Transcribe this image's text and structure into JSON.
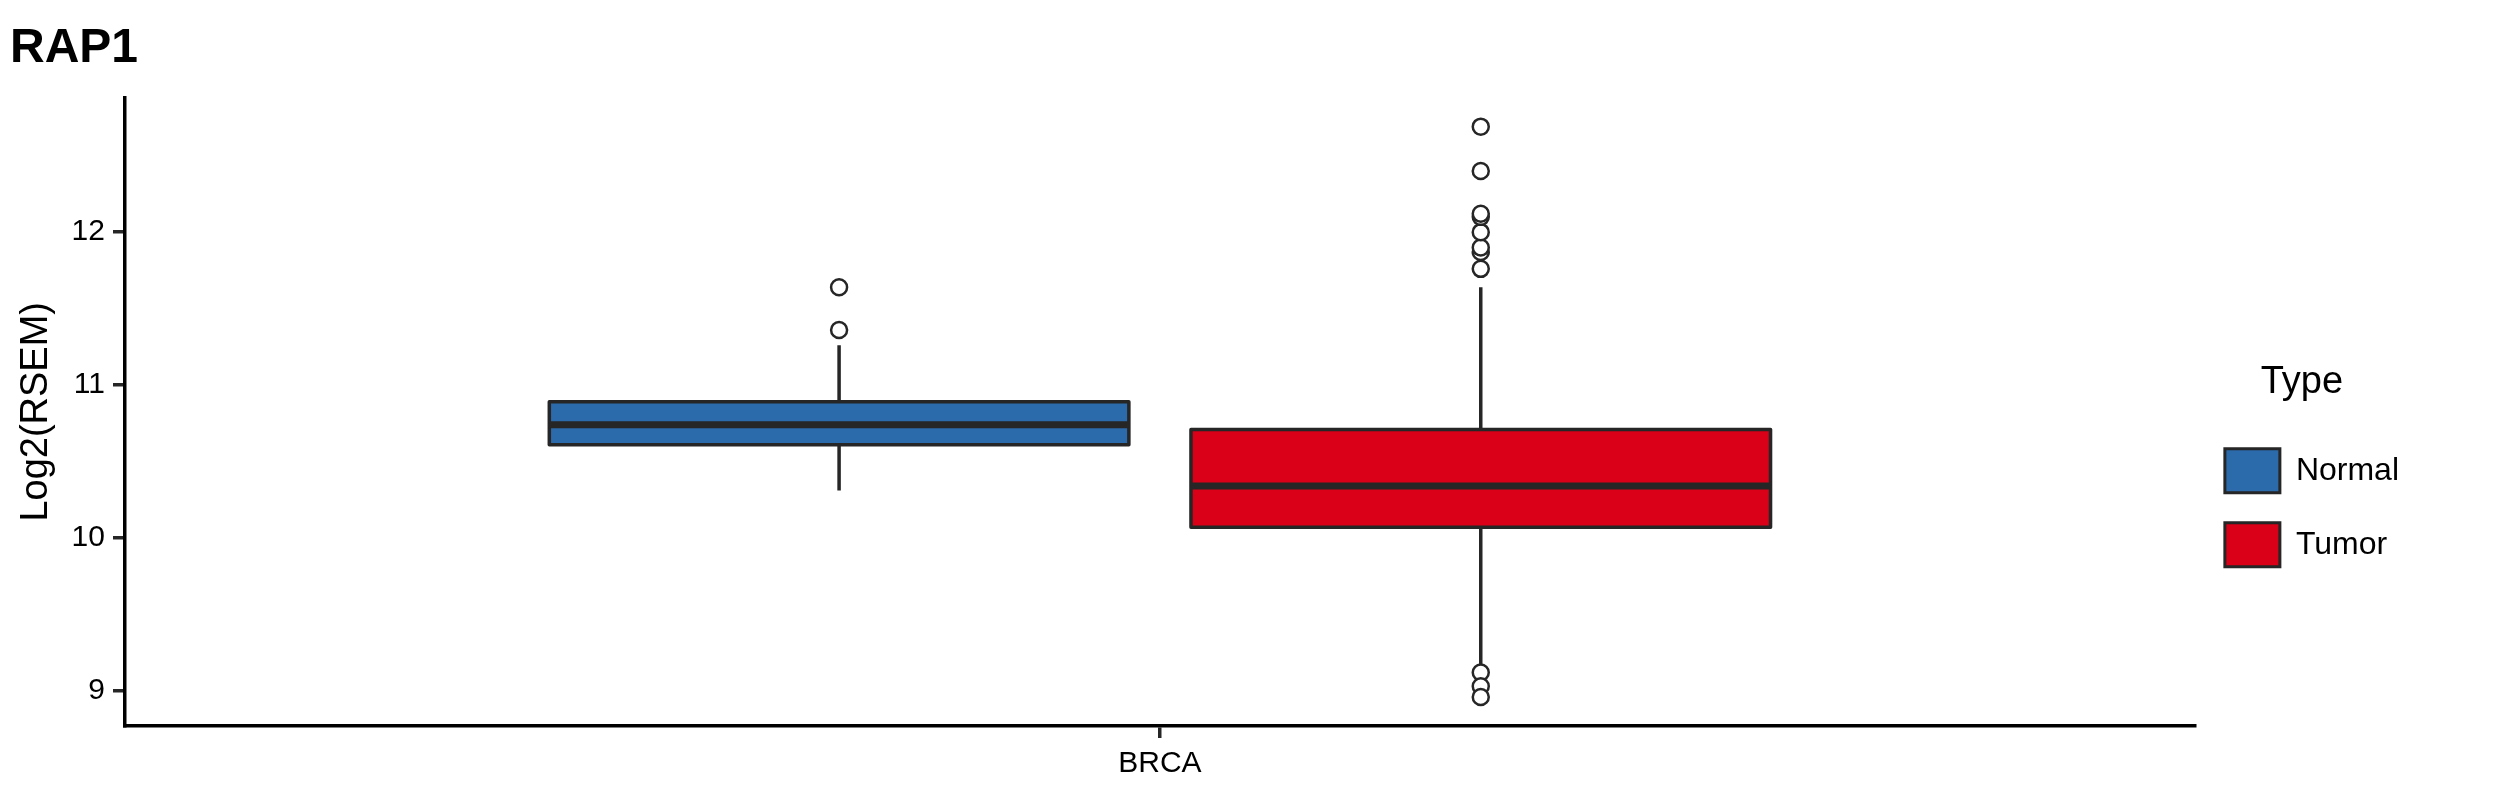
{
  "chart_data": {
    "type": "box",
    "title": "RAP1",
    "ylabel": "Log2(RSEM)",
    "legend_title": "Type",
    "categories": [
      "BRCA"
    ],
    "ylim": [
      8.77,
      12.88
    ],
    "yticks": [
      9,
      10,
      11,
      12
    ],
    "legend": "right",
    "grid": false,
    "series": [
      {
        "name": "Normal",
        "color": "#2b6aab",
        "boxes": [
          {
            "low": 10.31,
            "q1": 10.61,
            "median": 10.74,
            "q3": 10.89,
            "high": 11.26,
            "outliers": [
              11.36,
              11.64
            ]
          }
        ]
      },
      {
        "name": "Tumor",
        "color": "#d90017",
        "boxes": [
          {
            "low": 9.15,
            "q1": 10.07,
            "median": 10.34,
            "q3": 10.71,
            "high": 11.64,
            "outliers": [
              11.76,
              11.87,
              11.9,
              12.0,
              12.1,
              12.12,
              12.4,
              12.69,
              9.12,
              9.03,
              8.96
            ]
          }
        ]
      }
    ]
  }
}
